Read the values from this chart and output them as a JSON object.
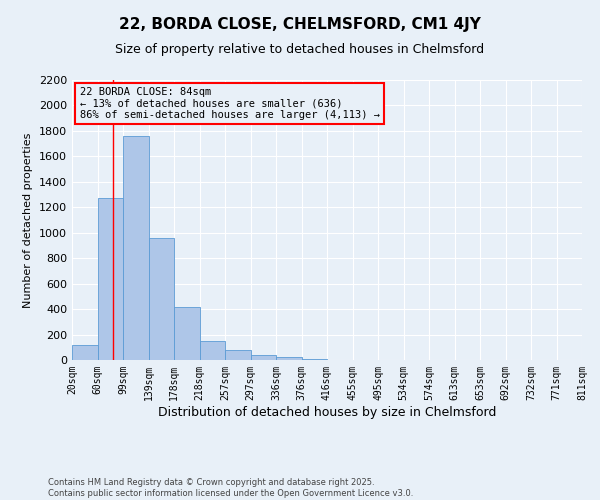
{
  "title": "22, BORDA CLOSE, CHELMSFORD, CM1 4JY",
  "subtitle": "Size of property relative to detached houses in Chelmsford",
  "xlabel": "Distribution of detached houses by size in Chelmsford",
  "ylabel": "Number of detached properties",
  "bin_labels": [
    "20sqm",
    "60sqm",
    "99sqm",
    "139sqm",
    "178sqm",
    "218sqm",
    "257sqm",
    "297sqm",
    "336sqm",
    "376sqm",
    "416sqm",
    "455sqm",
    "495sqm",
    "534sqm",
    "574sqm",
    "613sqm",
    "653sqm",
    "692sqm",
    "732sqm",
    "771sqm",
    "811sqm"
  ],
  "bar_values": [
    120,
    1270,
    1760,
    960,
    420,
    150,
    75,
    40,
    20,
    5,
    2,
    1,
    1,
    0,
    0,
    0,
    0,
    0,
    0,
    0
  ],
  "bar_color": "#aec6e8",
  "bar_edge_color": "#5b9bd5",
  "background_color": "#e8f0f8",
  "grid_color": "#ffffff",
  "ylim": [
    0,
    2200
  ],
  "annotation_text": "22 BORDA CLOSE: 84sqm\n← 13% of detached houses are smaller (636)\n86% of semi-detached houses are larger (4,113) →",
  "annotation_box_color": "#ff0000",
  "footer_line1": "Contains HM Land Registry data © Crown copyright and database right 2025.",
  "footer_line2": "Contains public sector information licensed under the Open Government Licence v3.0.",
  "title_fontsize": 11,
  "subtitle_fontsize": 9,
  "tick_label_fontsize": 7,
  "ylabel_fontsize": 8,
  "xlabel_fontsize": 9,
  "annotation_fontsize": 7.5,
  "footer_fontsize": 6
}
